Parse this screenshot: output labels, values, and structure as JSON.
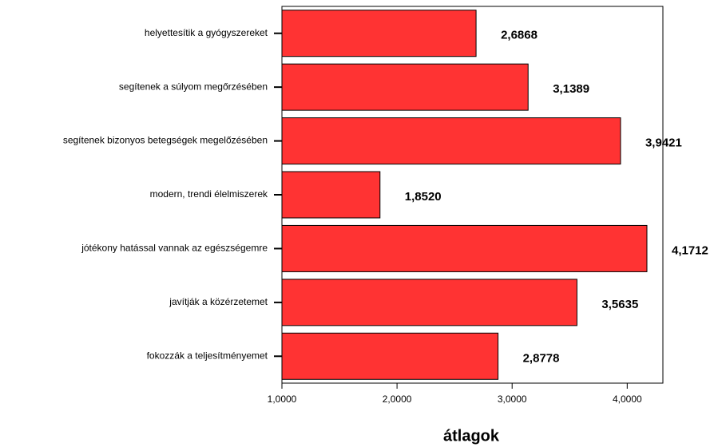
{
  "chart_data": {
    "type": "barh",
    "categories": [
      "helyettesítik a gyógyszereket",
      "segítenek a súlyom megőrzésében",
      "segítenek bizonyos betegségek megelőzésében",
      "modern, trendi élelmiszerek",
      "jótékony hatással vannak az egészségemre",
      "javítják a közérzetemet",
      "fokozzák a teljesítményemet"
    ],
    "values": [
      2.6868,
      3.1389,
      3.9421,
      1.852,
      4.1712,
      3.5635,
      2.8778
    ],
    "value_labels": [
      "2,6868",
      "3,1389",
      "3,9421",
      "1,8520",
      "4,1712",
      "3,5635",
      "2,8778"
    ],
    "color": "#ff3333",
    "xlim": [
      1,
      4.31
    ],
    "xticks": [
      {
        "value": 1,
        "label": "1,0000"
      },
      {
        "value": 2,
        "label": "2,0000"
      },
      {
        "value": 3,
        "label": "3,0000"
      },
      {
        "value": 4,
        "label": "4,0000"
      }
    ],
    "xlabel": "átlagok"
  }
}
